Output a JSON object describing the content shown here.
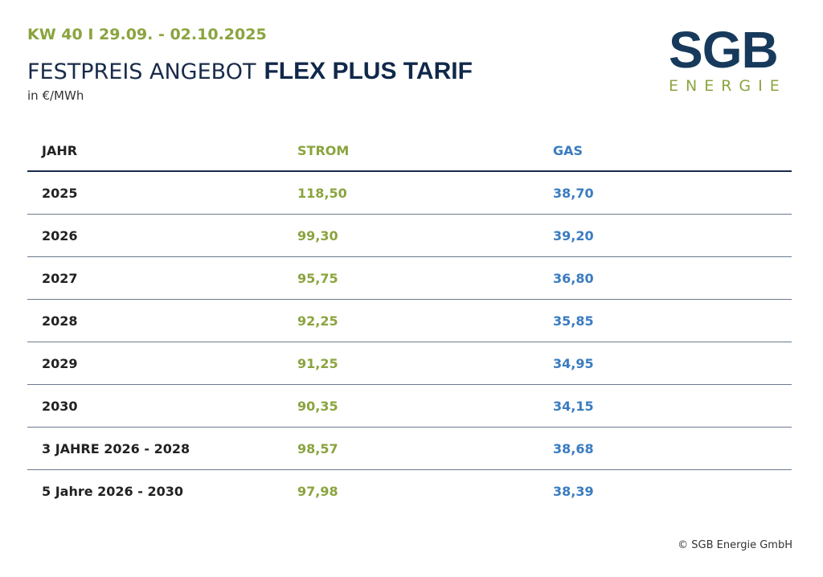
{
  "header": {
    "week": "KW 40 I 29.09. - 02.10.2025",
    "title_light": "FESTPREIS ANGEBOT",
    "title_bold": "FLEX PLUS TARIF",
    "unit": "in €/MWh"
  },
  "logo": {
    "name": "SGB",
    "sub": "ENERGIE"
  },
  "table": {
    "columns": [
      "JAHR",
      "STROM",
      "GAS"
    ],
    "rows": [
      [
        "2025",
        "118,50",
        "38,70"
      ],
      [
        "2026",
        "99,30",
        "39,20"
      ],
      [
        "2027",
        "95,75",
        "36,80"
      ],
      [
        "2028",
        "92,25",
        "35,85"
      ],
      [
        "2029",
        "91,25",
        "34,95"
      ],
      [
        "2030",
        "90,35",
        "34,15"
      ],
      [
        "3 JAHRE 2026 - 2028",
        "98,57",
        "38,68"
      ],
      [
        "5 Jahre 2026 - 2030",
        "97,98",
        "38,39"
      ]
    ]
  },
  "footer": {
    "copyright": "© SGB Energie GmbH"
  }
}
